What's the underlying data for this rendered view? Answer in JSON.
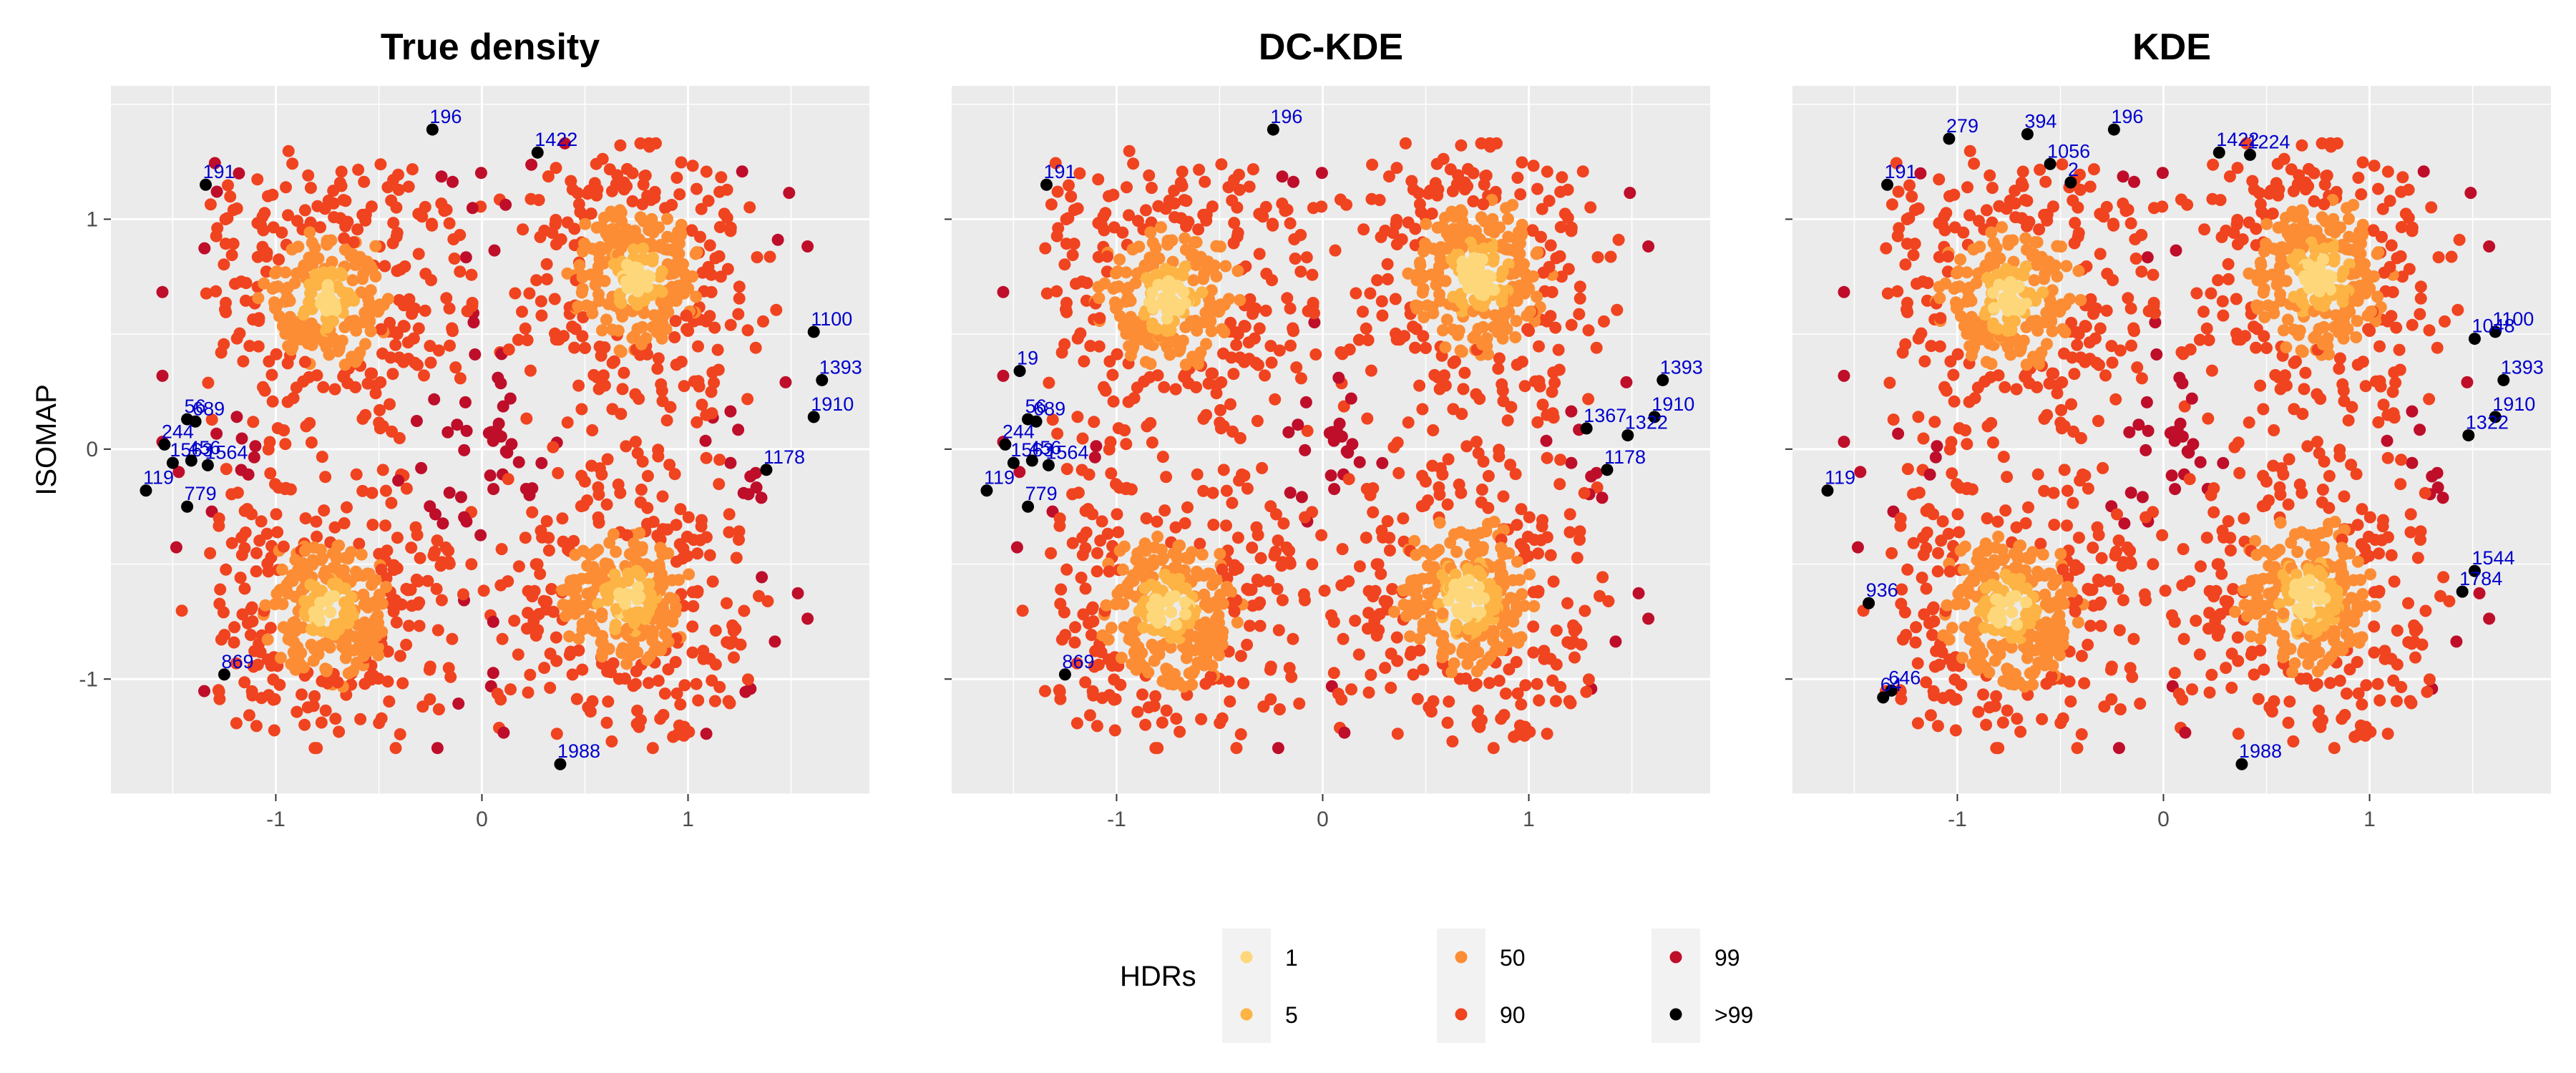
{
  "chart_data": [
    {
      "type": "scatter",
      "title": "True density",
      "ylabel": "ISOMAP",
      "xlim": [
        -1.8,
        1.88
      ],
      "ylim": [
        -1.5,
        1.58
      ],
      "xticks": [
        -1,
        0,
        1
      ],
      "yticks": [
        -1,
        0,
        1
      ],
      "grid": true,
      "outliers": [
        {
          "label": "196",
          "x": -0.24,
          "y": 1.39
        },
        {
          "label": "1422",
          "x": 0.27,
          "y": 1.29
        },
        {
          "label": "191",
          "x": -1.34,
          "y": 1.15
        },
        {
          "label": "1100",
          "x": 1.61,
          "y": 0.51
        },
        {
          "label": "1393",
          "x": 1.65,
          "y": 0.3
        },
        {
          "label": "1910",
          "x": 1.61,
          "y": 0.14
        },
        {
          "label": "56",
          "x": -1.43,
          "y": 0.13
        },
        {
          "label": "689",
          "x": -1.39,
          "y": 0.12
        },
        {
          "label": "244",
          "x": -1.54,
          "y": 0.02
        },
        {
          "label": "1178",
          "x": 1.38,
          "y": -0.09
        },
        {
          "label": "1563",
          "x": -1.5,
          "y": -0.06
        },
        {
          "label": "456",
          "x": -1.41,
          "y": -0.05
        },
        {
          "label": "1564",
          "x": -1.33,
          "y": -0.07
        },
        {
          "label": "119",
          "x": -1.63,
          "y": -0.18
        },
        {
          "label": "779",
          "x": -1.43,
          "y": -0.25
        },
        {
          "label": "869",
          "x": -1.25,
          "y": -0.98
        },
        {
          "label": "1988",
          "x": 0.38,
          "y": -1.37
        }
      ]
    },
    {
      "type": "scatter",
      "title": "DC-KDE",
      "xlim": [
        -1.8,
        1.88
      ],
      "ylim": [
        -1.5,
        1.58
      ],
      "xticks": [
        -1,
        0,
        1
      ],
      "yticks": [
        -1,
        0,
        1
      ],
      "grid": true,
      "outliers": [
        {
          "label": "196",
          "x": -0.24,
          "y": 1.39
        },
        {
          "label": "191",
          "x": -1.34,
          "y": 1.15
        },
        {
          "label": "1393",
          "x": 1.65,
          "y": 0.3
        },
        {
          "label": "19",
          "x": -1.47,
          "y": 0.34
        },
        {
          "label": "1910",
          "x": 1.61,
          "y": 0.14
        },
        {
          "label": "1367",
          "x": 1.28,
          "y": 0.09
        },
        {
          "label": "1322",
          "x": 1.48,
          "y": 0.06
        },
        {
          "label": "56",
          "x": -1.43,
          "y": 0.13
        },
        {
          "label": "689",
          "x": -1.39,
          "y": 0.12
        },
        {
          "label": "244",
          "x": -1.54,
          "y": 0.02
        },
        {
          "label": "1178",
          "x": 1.38,
          "y": -0.09
        },
        {
          "label": "1563",
          "x": -1.5,
          "y": -0.06
        },
        {
          "label": "456",
          "x": -1.41,
          "y": -0.05
        },
        {
          "label": "1564",
          "x": -1.33,
          "y": -0.07
        },
        {
          "label": "119",
          "x": -1.63,
          "y": -0.18
        },
        {
          "label": "779",
          "x": -1.43,
          "y": -0.25
        },
        {
          "label": "869",
          "x": -1.25,
          "y": -0.98
        }
      ]
    },
    {
      "type": "scatter",
      "title": "KDE",
      "xlim": [
        -1.8,
        1.88
      ],
      "ylim": [
        -1.5,
        1.58
      ],
      "xticks": [
        -1,
        0,
        1
      ],
      "yticks": [
        -1,
        0,
        1
      ],
      "grid": true,
      "outliers": [
        {
          "label": "279",
          "x": -1.04,
          "y": 1.35
        },
        {
          "label": "394",
          "x": -0.66,
          "y": 1.37
        },
        {
          "label": "196",
          "x": -0.24,
          "y": 1.39
        },
        {
          "label": "1422",
          "x": 0.27,
          "y": 1.29
        },
        {
          "label": "1224",
          "x": 0.42,
          "y": 1.28
        },
        {
          "label": "1056",
          "x": -0.55,
          "y": 1.24
        },
        {
          "label": "2",
          "x": -0.45,
          "y": 1.16
        },
        {
          "label": "191",
          "x": -1.34,
          "y": 1.15
        },
        {
          "label": "1100",
          "x": 1.61,
          "y": 0.51
        },
        {
          "label": "1048",
          "x": 1.51,
          "y": 0.48
        },
        {
          "label": "1393",
          "x": 1.65,
          "y": 0.3
        },
        {
          "label": "1910",
          "x": 1.61,
          "y": 0.14
        },
        {
          "label": "1322",
          "x": 1.48,
          "y": 0.06
        },
        {
          "label": "119",
          "x": -1.63,
          "y": -0.18
        },
        {
          "label": "1544",
          "x": 1.51,
          "y": -0.53
        },
        {
          "label": "1784",
          "x": 1.45,
          "y": -0.62
        },
        {
          "label": "936",
          "x": -1.43,
          "y": -0.67
        },
        {
          "label": "646",
          "x": -1.32,
          "y": -1.05
        },
        {
          "label": "64",
          "x": -1.36,
          "y": -1.08
        },
        {
          "label": "1988",
          "x": 0.38,
          "y": -1.37
        }
      ]
    }
  ],
  "legend": {
    "title": "HDRs",
    "placement": "bottom",
    "items": [
      {
        "label": "1",
        "color": "#fdd77a"
      },
      {
        "label": "5",
        "color": "#fdb444"
      },
      {
        "label": "50",
        "color": "#fc8d34"
      },
      {
        "label": "90",
        "color": "#f0431f"
      },
      {
        "label": "99",
        "color": "#be0e2a"
      },
      {
        "label": ">99",
        "color": "#000000"
      }
    ]
  },
  "colors": {
    "panel_bg": "#ebebeb",
    "grid_major": "#ffffff",
    "outlier_text": "#0000cc"
  }
}
